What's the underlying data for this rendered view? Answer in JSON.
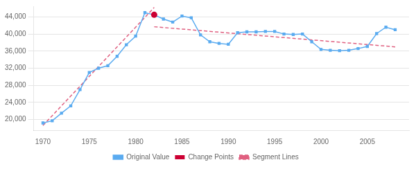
{
  "chart_data": {
    "type": "line",
    "x": [
      1970,
      1971,
      1972,
      1973,
      1974,
      1975,
      1976,
      1977,
      1978,
      1979,
      1980,
      1981,
      1982,
      1983,
      1984,
      1985,
      1986,
      1987,
      1988,
      1989,
      1990,
      1991,
      1992,
      1993,
      1994,
      1995,
      1996,
      1997,
      1998,
      1999,
      2000,
      2001,
      2002,
      2003,
      2004,
      2005,
      2006,
      2007,
      2008
    ],
    "series": [
      {
        "name": "Original Value",
        "color": "#5aabf0",
        "marker": "square",
        "line_style": "solid",
        "values": [
          19200,
          19700,
          21500,
          23200,
          27000,
          31000,
          32000,
          32600,
          34800,
          37500,
          39500,
          45000,
          44500,
          43500,
          42800,
          44200,
          43800,
          39800,
          38200,
          37800,
          37600,
          40300,
          40500,
          40500,
          40600,
          40600,
          40000,
          39900,
          40000,
          38200,
          36400,
          36200,
          36100,
          36200,
          36600,
          37100,
          40100,
          41600,
          41000
        ]
      },
      {
        "name": "Change Points",
        "color": "#cc0033",
        "marker": "circle",
        "line_style": "none",
        "x": [
          1982
        ],
        "values": [
          44500
        ]
      },
      {
        "name": "Segment Lines",
        "color": "#e06080",
        "marker": "none",
        "line_style": "dashed",
        "x": [
          1970,
          1982
        ],
        "values": [
          18600,
          46200
        ]
      },
      {
        "color": "#e06080",
        "marker": "none",
        "line_style": "dashed",
        "x": [
          1982,
          2008
        ],
        "values": [
          41700,
          37000
        ]
      }
    ],
    "xlim": [
      1969.0,
      2009.5
    ],
    "xticks": [
      1970,
      1975,
      1980,
      1985,
      1990,
      1995,
      2000,
      2005
    ],
    "ylim": [
      17500,
      46500
    ],
    "yticks": [
      {
        "value": 20000,
        "label": "20,000"
      },
      {
        "value": 24000,
        "label": "24,000"
      },
      {
        "value": 28000,
        "label": "28,000"
      },
      {
        "value": 32000,
        "label": "32,000"
      },
      {
        "value": 36000,
        "label": "36,000"
      },
      {
        "value": 40000,
        "label": "40,000"
      },
      {
        "value": 44000,
        "label": "44,000"
      }
    ],
    "grid": "y",
    "legend": "bottom"
  }
}
